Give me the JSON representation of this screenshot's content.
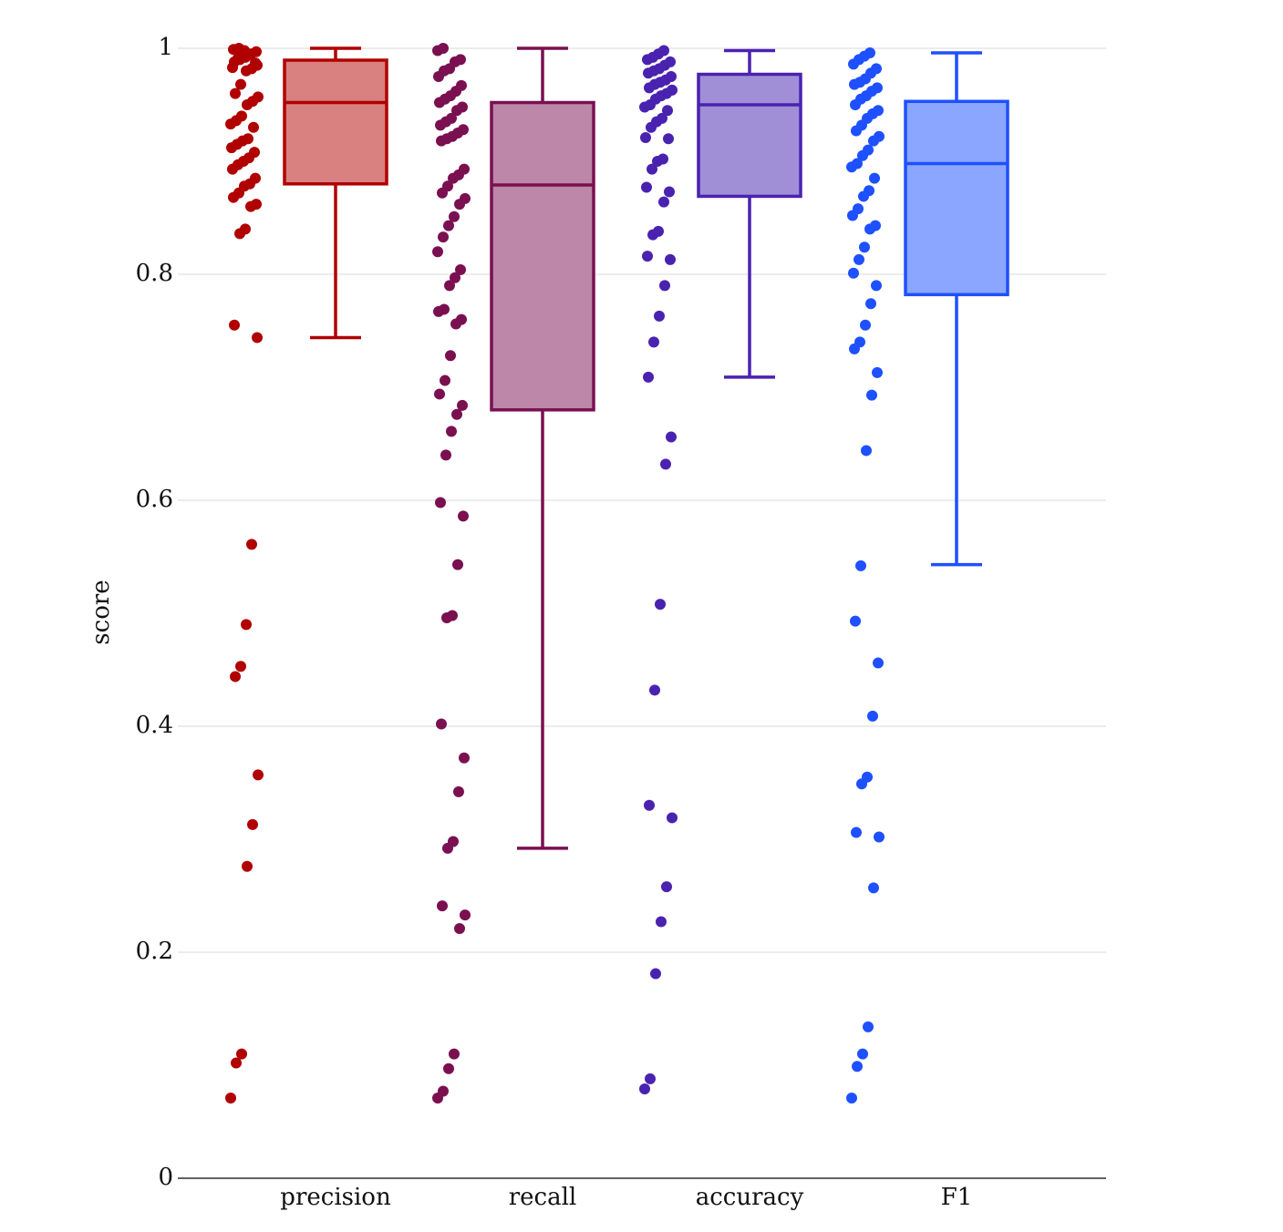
{
  "chart_data": {
    "type": "box",
    "y_label": "score",
    "ylim": [
      0,
      1
    ],
    "yticks": [
      0,
      0.2,
      0.4,
      0.6,
      0.8,
      1
    ],
    "grid": true,
    "series": [
      {
        "name": "precision",
        "color": "#b00000",
        "fill": "#d98080",
        "box": {
          "min": 0.744,
          "q1": 0.88,
          "median": 0.952,
          "q3": 0.9895,
          "max": 1.0
        },
        "points": [
          0.071,
          0.102,
          0.11,
          0.276,
          0.313,
          0.357,
          0.444,
          0.453,
          0.49,
          0.561,
          0.744,
          0.755,
          0.836,
          0.84,
          0.86,
          0.862,
          0.868,
          0.872,
          0.878,
          0.88,
          0.885,
          0.893,
          0.897,
          0.9,
          0.903,
          0.908,
          0.912,
          0.915,
          0.918,
          0.92,
          0.93,
          0.933,
          0.936,
          0.94,
          0.95,
          0.953,
          0.957,
          0.96,
          0.968,
          0.98,
          0.982,
          0.985,
          0.988,
          0.99,
          0.992,
          0.995,
          0.997,
          0.999,
          1.0,
          0.998,
          0.994,
          0.987,
          0.983,
          0.991
        ]
      },
      {
        "name": "recall",
        "color": "#7a1050",
        "fill": "#bc87a8",
        "box": {
          "min": 0.292,
          "q1": 0.68,
          "median": 0.879,
          "q3": 0.952,
          "max": 1.0
        },
        "points": [
          0.071,
          0.077,
          0.097,
          0.11,
          0.221,
          0.233,
          0.241,
          0.292,
          0.298,
          0.342,
          0.372,
          0.402,
          0.496,
          0.498,
          0.543,
          0.586,
          0.598,
          0.64,
          0.661,
          0.676,
          0.684,
          0.694,
          0.706,
          0.728,
          0.756,
          0.76,
          0.767,
          0.769,
          0.79,
          0.797,
          0.804,
          0.82,
          0.833,
          0.843,
          0.851,
          0.862,
          0.867,
          0.872,
          0.878,
          0.885,
          0.888,
          0.893,
          0.918,
          0.92,
          0.922,
          0.925,
          0.928,
          0.932,
          0.935,
          0.938,
          0.945,
          0.948,
          0.952,
          0.955,
          0.958,
          0.962,
          0.967,
          0.975,
          0.98,
          0.982,
          0.988,
          0.99,
          0.998,
          1.0
        ]
      },
      {
        "name": "accuracy",
        "color": "#4a22b0",
        "fill": "#a08fd6",
        "box": {
          "min": 0.709,
          "q1": 0.869,
          "median": 0.95,
          "q3": 0.977,
          "max": 0.998
        },
        "points": [
          0.079,
          0.088,
          0.181,
          0.227,
          0.258,
          0.319,
          0.33,
          0.432,
          0.508,
          0.632,
          0.656,
          0.709,
          0.74,
          0.763,
          0.79,
          0.813,
          0.816,
          0.835,
          0.838,
          0.864,
          0.873,
          0.877,
          0.893,
          0.9,
          0.902,
          0.92,
          0.921,
          0.93,
          0.935,
          0.938,
          0.945,
          0.948,
          0.95,
          0.955,
          0.958,
          0.96,
          0.963,
          0.965,
          0.968,
          0.97,
          0.972,
          0.975,
          0.978,
          0.98,
          0.982,
          0.985,
          0.988,
          0.99,
          0.992,
          0.995,
          0.998
        ]
      },
      {
        "name": "F1",
        "color": "#1e50ff",
        "fill": "#8aa6ff",
        "box": {
          "min": 0.543,
          "q1": 0.782,
          "median": 0.898,
          "q3": 0.953,
          "max": 0.996
        },
        "points": [
          0.071,
          0.099,
          0.11,
          0.134,
          0.257,
          0.302,
          0.306,
          0.349,
          0.355,
          0.409,
          0.456,
          0.493,
          0.542,
          0.644,
          0.693,
          0.713,
          0.734,
          0.74,
          0.755,
          0.774,
          0.79,
          0.801,
          0.813,
          0.824,
          0.84,
          0.843,
          0.852,
          0.858,
          0.869,
          0.874,
          0.885,
          0.895,
          0.898,
          0.905,
          0.91,
          0.918,
          0.922,
          0.927,
          0.932,
          0.938,
          0.942,
          0.945,
          0.95,
          0.955,
          0.958,
          0.962,
          0.965,
          0.968,
          0.97,
          0.973,
          0.978,
          0.982,
          0.986,
          0.99,
          0.993,
          0.996
        ]
      }
    ]
  }
}
